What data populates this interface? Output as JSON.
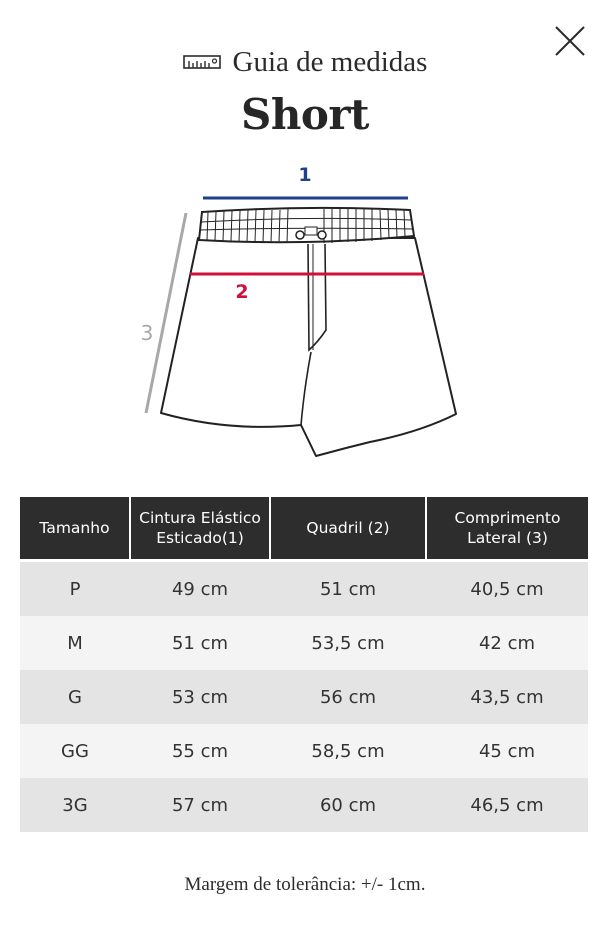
{
  "header": {
    "title": "Guia de medidas",
    "product": "Short"
  },
  "icons": {
    "title_icon": "ruler-icon",
    "close": "close-icon"
  },
  "diagram": {
    "label_1": "1",
    "label_2": "2",
    "label_3": "3",
    "colors": {
      "line_1": "#1f3f8f",
      "line_2": "#d0103a",
      "line_3": "#a8a8a8"
    }
  },
  "table": {
    "headers": [
      "Tamanho",
      "Cintura Elástico Esticado(1)",
      "Quadril (2)",
      "Comprimento Lateral (3)"
    ],
    "rows": [
      [
        "P",
        "49 cm",
        "51 cm",
        "40,5 cm"
      ],
      [
        "M",
        "51 cm",
        "53,5 cm",
        "42 cm"
      ],
      [
        "G",
        "53 cm",
        "56 cm",
        "43,5 cm"
      ],
      [
        "GG",
        "55 cm",
        "58,5 cm",
        "45 cm"
      ],
      [
        "3G",
        "57 cm",
        "60 cm",
        "46,5 cm"
      ]
    ]
  },
  "footer": {
    "note": "Margem de tolerância: +/- 1cm."
  }
}
